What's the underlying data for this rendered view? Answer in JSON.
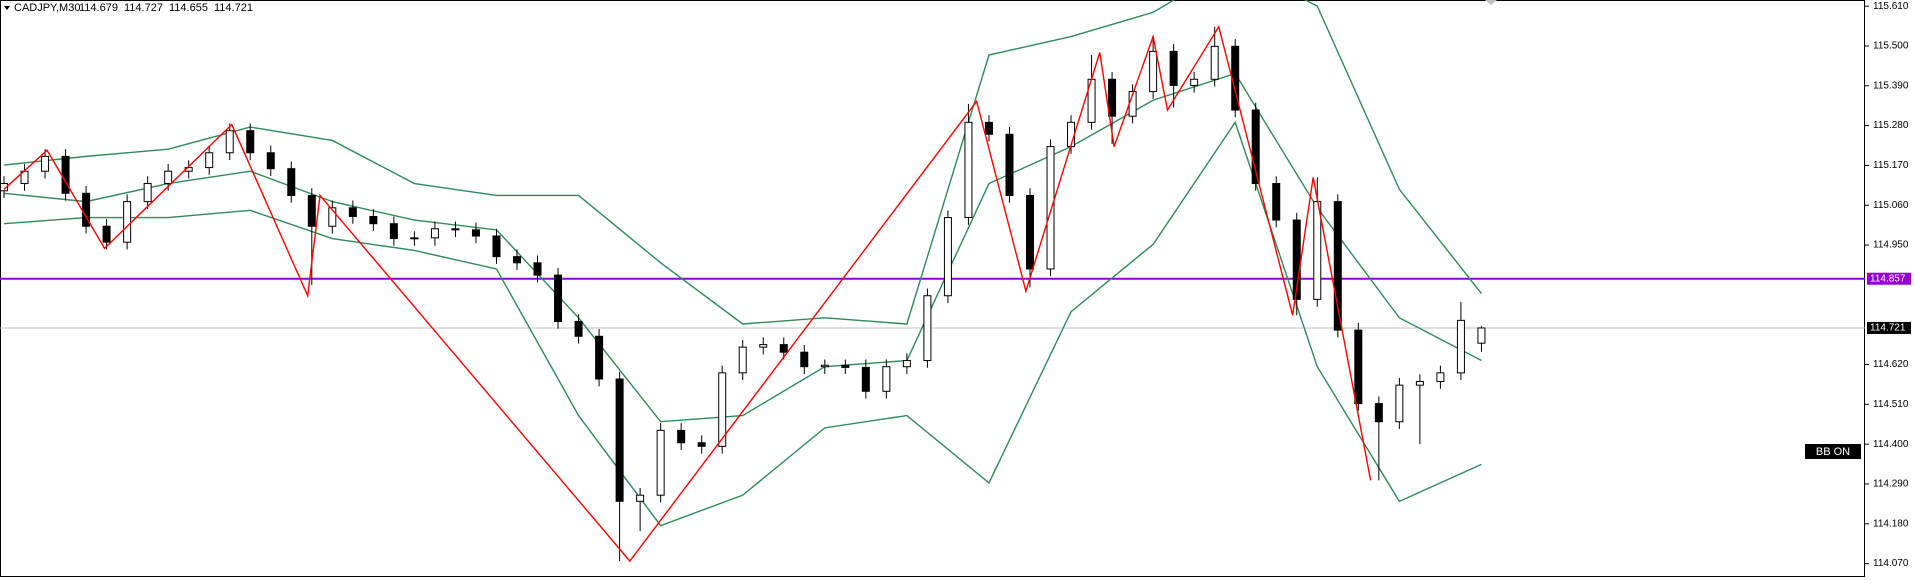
{
  "chart_data": {
    "type": "candlestick",
    "symbol": "CADJPY,M30",
    "ylim": [
      114.033,
      115.627
    ],
    "yticks": [
      {
        "value": 115.61,
        "label": "115.610"
      },
      {
        "value": 115.5,
        "label": "115.500"
      },
      {
        "value": 115.39,
        "label": "115.390"
      },
      {
        "value": 115.28,
        "label": "115.280"
      },
      {
        "value": 115.17,
        "label": "115.170"
      },
      {
        "value": 115.06,
        "label": "115.060"
      },
      {
        "value": 114.95,
        "label": "114.950"
      },
      {
        "value": 114.62,
        "label": "114.620"
      },
      {
        "value": 114.51,
        "label": "114.510"
      },
      {
        "value": 114.4,
        "label": "114.400"
      },
      {
        "value": 114.29,
        "label": "114.290"
      },
      {
        "value": 114.18,
        "label": "114.180"
      },
      {
        "value": 114.07,
        "label": "114.070"
      }
    ],
    "up_color": "#ffffff",
    "down_color": "#000000",
    "candles": [
      [
        115.1,
        115.14,
        115.08,
        115.12
      ],
      [
        115.12,
        115.174,
        115.1,
        115.154
      ],
      [
        115.154,
        115.215,
        115.134,
        115.195
      ],
      [
        115.195,
        115.215,
        115.073,
        115.093
      ],
      [
        115.093,
        115.113,
        114.982,
        115.002
      ],
      [
        115.002,
        115.022,
        114.938,
        114.958
      ],
      [
        114.958,
        115.09,
        114.938,
        115.07
      ],
      [
        115.07,
        115.14,
        115.05,
        115.12
      ],
      [
        115.12,
        115.174,
        115.1,
        115.154
      ],
      [
        115.154,
        115.184,
        115.134,
        115.164
      ],
      [
        115.164,
        115.225,
        115.144,
        115.205
      ],
      [
        115.205,
        115.286,
        115.185,
        115.266
      ],
      [
        115.266,
        115.286,
        115.185,
        115.205
      ],
      [
        115.205,
        115.225,
        115.141,
        115.161
      ],
      [
        115.161,
        115.181,
        115.067,
        115.087
      ],
      [
        115.087,
        115.107,
        114.84,
        115.002
      ],
      [
        115.002,
        115.073,
        114.982,
        115.053
      ],
      [
        115.053,
        115.073,
        115.009,
        115.029
      ],
      [
        115.029,
        115.049,
        114.989,
        115.009
      ],
      [
        115.009,
        115.029,
        114.948,
        114.968
      ],
      [
        114.968,
        114.988,
        114.948,
        114.97
      ],
      [
        114.97,
        115.015,
        114.948,
        114.995
      ],
      [
        114.995,
        115.015,
        114.972,
        114.992
      ],
      [
        114.992,
        115.012,
        114.955,
        114.975
      ],
      [
        114.975,
        114.995,
        114.898,
        114.918
      ],
      [
        114.918,
        114.938,
        114.881,
        114.901
      ],
      [
        114.901,
        114.921,
        114.847,
        114.867
      ],
      [
        114.867,
        114.887,
        114.719,
        114.739
      ],
      [
        114.739,
        114.759,
        114.678,
        114.698
      ],
      [
        114.698,
        114.718,
        114.56,
        114.58
      ],
      [
        114.58,
        114.6,
        114.077,
        114.242
      ],
      [
        114.242,
        114.279,
        114.16,
        114.259
      ],
      [
        114.259,
        114.458,
        114.239,
        114.438
      ],
      [
        114.438,
        114.458,
        114.384,
        114.404
      ],
      [
        114.404,
        114.424,
        114.374,
        114.394
      ],
      [
        114.394,
        114.617,
        114.374,
        114.597
      ],
      [
        114.597,
        114.688,
        114.577,
        114.668
      ],
      [
        114.668,
        114.695,
        114.648,
        114.675
      ],
      [
        114.675,
        114.695,
        114.634,
        114.654
      ],
      [
        114.654,
        114.674,
        114.594,
        114.614
      ],
      [
        114.614,
        114.634,
        114.594,
        114.618
      ],
      [
        114.618,
        114.634,
        114.594,
        114.612
      ],
      [
        114.612,
        114.634,
        114.526,
        114.546
      ],
      [
        114.546,
        114.634,
        114.526,
        114.614
      ],
      [
        114.614,
        114.651,
        114.594,
        114.631
      ],
      [
        114.631,
        114.83,
        114.611,
        114.81
      ],
      [
        114.81,
        115.046,
        114.79,
        115.026
      ],
      [
        115.026,
        115.34,
        115.006,
        115.289
      ],
      [
        115.289,
        115.309,
        115.236,
        115.256
      ],
      [
        115.256,
        115.276,
        115.067,
        115.087
      ],
      [
        115.087,
        115.107,
        114.833,
        114.884
      ],
      [
        114.884,
        115.242,
        114.864,
        115.222
      ],
      [
        115.222,
        115.309,
        115.202,
        115.289
      ],
      [
        115.289,
        115.475,
        115.269,
        115.408
      ],
      [
        115.408,
        115.428,
        115.229,
        115.306
      ],
      [
        115.306,
        115.394,
        115.286,
        115.374
      ],
      [
        115.374,
        115.526,
        115.354,
        115.485
      ],
      [
        115.485,
        115.505,
        115.33,
        115.391
      ],
      [
        115.391,
        115.428,
        115.371,
        115.408
      ],
      [
        115.408,
        115.553,
        115.388,
        115.499
      ],
      [
        115.499,
        115.519,
        115.303,
        115.323
      ],
      [
        115.323,
        115.343,
        115.1,
        115.12
      ],
      [
        115.12,
        115.14,
        114.999,
        115.019
      ],
      [
        115.019,
        115.039,
        114.756,
        114.8
      ],
      [
        114.8,
        115.137,
        114.78,
        115.07
      ],
      [
        115.07,
        115.09,
        114.695,
        114.715
      ],
      [
        114.715,
        114.735,
        114.492,
        114.512
      ],
      [
        114.512,
        114.532,
        114.3,
        114.462
      ],
      [
        114.462,
        114.583,
        114.442,
        114.563
      ],
      [
        114.563,
        114.593,
        114.4,
        114.573
      ],
      [
        114.573,
        114.617,
        114.553,
        114.597
      ],
      [
        114.597,
        114.793,
        114.577,
        114.742
      ],
      [
        114.679,
        114.727,
        114.655,
        114.721
      ]
    ],
    "bands": {
      "color": "#2e8b57",
      "x": [
        0,
        4,
        8,
        12,
        16,
        20,
        24,
        28,
        32,
        36,
        40,
        44,
        48,
        52,
        56,
        60,
        64,
        68,
        72
      ],
      "upper": [
        115.171,
        115.195,
        115.215,
        115.276,
        115.239,
        115.12,
        115.087,
        115.087,
        114.901,
        114.732,
        114.749,
        114.732,
        115.475,
        115.526,
        115.593,
        115.728,
        115.61,
        115.104,
        114.816
      ],
      "middle": [
        115.093,
        115.07,
        115.12,
        115.154,
        115.07,
        115.019,
        114.992,
        114.749,
        114.462,
        114.479,
        114.614,
        114.631,
        115.12,
        115.222,
        115.35,
        115.424,
        115.053,
        114.749,
        114.631
      ],
      "lower": [
        115.009,
        115.026,
        115.026,
        115.046,
        114.968,
        114.935,
        114.884,
        114.479,
        114.175,
        114.259,
        114.445,
        114.479,
        114.293,
        114.766,
        114.952,
        115.289,
        114.614,
        114.242,
        114.344
      ]
    },
    "zigzag": {
      "color": "#ff0000",
      "x": [
        0,
        2.1,
        4.9,
        11.1,
        14.8,
        15.4,
        30.5,
        47.4,
        49.8,
        53.4,
        54.1,
        56.0,
        56.7,
        59.2,
        62.8,
        63.8,
        66.6
      ],
      "values": [
        115.104,
        115.212,
        114.941,
        115.283,
        114.81,
        115.087,
        114.077,
        115.347,
        114.823,
        115.482,
        115.222,
        115.526,
        115.323,
        115.553,
        114.756,
        115.137,
        114.3
      ]
    },
    "levels": [
      {
        "value": 114.857,
        "color": "#9400d3",
        "label_color": "#9400d3"
      },
      {
        "value": 114.721,
        "color": "#c0c0c0",
        "label_color": "#000000"
      }
    ],
    "badge": "BB ON"
  }
}
